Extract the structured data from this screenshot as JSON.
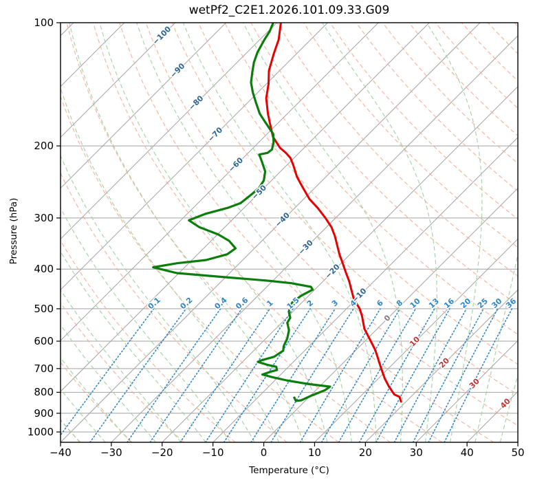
{
  "title": "wetPf2_C2E1.2026.101.09.33.G09",
  "chart_data": {
    "type": "line",
    "chart_kind": "skew-t-log-p-sounding",
    "xlabel": "Temperature (°C)",
    "ylabel": "Pressure (hPa)",
    "x_range": [
      -40,
      50
    ],
    "x_ticks": [
      -40,
      -30,
      -20,
      -10,
      0,
      10,
      20,
      30,
      40,
      50
    ],
    "p_range": [
      100,
      1060
    ],
    "y_ticks": [
      100,
      200,
      300,
      400,
      500,
      600,
      700,
      800,
      900,
      1000
    ],
    "skew_deg": 45,
    "grid": true,
    "series": [
      {
        "name": "temperature",
        "color": "#e60000",
        "width": 3,
        "points": [
          [
            100,
            -79.2
          ],
          [
            110,
            -76.3
          ],
          [
            119,
            -74.5
          ],
          [
            131,
            -72.1
          ],
          [
            141,
            -69.6
          ],
          [
            153,
            -67.2
          ],
          [
            167,
            -63.8
          ],
          [
            178,
            -61.1
          ],
          [
            190,
            -58.3
          ],
          [
            202,
            -54.8
          ],
          [
            208,
            -52.6
          ],
          [
            214,
            -50.7
          ],
          [
            223,
            -48.7
          ],
          [
            238,
            -45.7
          ],
          [
            253,
            -42.4
          ],
          [
            270,
            -38.8
          ],
          [
            284,
            -35.4
          ],
          [
            300,
            -32.0
          ],
          [
            316,
            -29.0
          ],
          [
            332,
            -26.6
          ],
          [
            350,
            -24.3
          ],
          [
            368,
            -22.1
          ],
          [
            387,
            -19.7
          ],
          [
            409,
            -17.1
          ],
          [
            429,
            -14.8
          ],
          [
            446,
            -13.1
          ],
          [
            474,
            -10.4
          ],
          [
            500,
            -7.4
          ],
          [
            521,
            -5.5
          ],
          [
            560,
            -2.5
          ],
          [
            597,
            0.9
          ],
          [
            632,
            3.9
          ],
          [
            673,
            6.8
          ],
          [
            700,
            8.6
          ],
          [
            741,
            11.3
          ],
          [
            775,
            13.7
          ],
          [
            810,
            16.3
          ],
          [
            821,
            17.8
          ],
          [
            843,
            19.0
          ]
        ]
      },
      {
        "name": "dewpoint",
        "color": "#0b7d0b",
        "width": 3.2,
        "points": [
          [
            100,
            -80.7
          ],
          [
            105,
            -79.7
          ],
          [
            110,
            -79.1
          ],
          [
            118,
            -78.0
          ],
          [
            125,
            -76.7
          ],
          [
            132,
            -75.1
          ],
          [
            140,
            -73.3
          ],
          [
            148,
            -71.0
          ],
          [
            157,
            -68.3
          ],
          [
            167,
            -65.4
          ],
          [
            175,
            -62.7
          ],
          [
            182,
            -60.4
          ],
          [
            187,
            -58.8
          ],
          [
            196,
            -57.1
          ],
          [
            204,
            -56.0
          ],
          [
            208,
            -56.2
          ],
          [
            210,
            -57.5
          ],
          [
            218,
            -55.7
          ],
          [
            231,
            -53.0
          ],
          [
            243,
            -51.5
          ],
          [
            253,
            -51.0
          ],
          [
            263,
            -51.2
          ],
          [
            276,
            -51.6
          ],
          [
            283,
            -53.1
          ],
          [
            293,
            -56.4
          ],
          [
            304,
            -58.4
          ],
          [
            316,
            -55.0
          ],
          [
            329,
            -49.9
          ],
          [
            341,
            -46.5
          ],
          [
            356,
            -43.7
          ],
          [
            368,
            -44.2
          ],
          [
            380,
            -47.2
          ],
          [
            387,
            -52.3
          ],
          [
            396,
            -56.2
          ],
          [
            409,
            -50.4
          ],
          [
            418,
            -40.7
          ],
          [
            427,
            -30.9
          ],
          [
            433,
            -25.9
          ],
          [
            442,
            -21.3
          ],
          [
            449,
            -20.4
          ],
          [
            465,
            -21.5
          ],
          [
            483,
            -21.9
          ],
          [
            508,
            -20.8
          ],
          [
            526,
            -19.3
          ],
          [
            541,
            -18.9
          ],
          [
            564,
            -17.1
          ],
          [
            591,
            -15.8
          ],
          [
            617,
            -15.0
          ],
          [
            633,
            -14.2
          ],
          [
            655,
            -14.8
          ],
          [
            667,
            -16.5
          ],
          [
            674,
            -17.0
          ],
          [
            686,
            -14.4
          ],
          [
            693,
            -12.4
          ],
          [
            706,
            -11.6
          ],
          [
            711,
            -12.4
          ],
          [
            724,
            -13.6
          ],
          [
            734,
            -11.3
          ],
          [
            748,
            -7.7
          ],
          [
            763,
            -2.9
          ],
          [
            775,
            2.1
          ],
          [
            790,
            1.8
          ],
          [
            815,
            0.2
          ],
          [
            837,
            -0.9
          ],
          [
            840,
            -1.8
          ],
          [
            824,
            -2.8
          ]
        ]
      }
    ],
    "isotherms": {
      "start": -120,
      "end": 50,
      "step": 10,
      "color": "#a2a2a2"
    },
    "isotherm_labels": [
      {
        "value": -100,
        "y": 52
      },
      {
        "value": -90,
        "y": 103
      },
      {
        "value": -80,
        "y": 150
      },
      {
        "value": -70,
        "y": 196
      },
      {
        "value": -60,
        "y": 240
      },
      {
        "value": -50,
        "y": 280
      },
      {
        "value": -40,
        "y": 320
      },
      {
        "value": -30,
        "y": 360
      },
      {
        "value": -20,
        "y": 395
      },
      {
        "value": -10,
        "y": 430
      },
      {
        "value": 0,
        "y": 463
      },
      {
        "value": 10,
        "y": 497
      },
      {
        "value": 20,
        "y": 528
      },
      {
        "value": 30,
        "y": 558
      },
      {
        "value": 40,
        "y": 587
      }
    ],
    "isotherm_label_colors": {
      "negative": "#2d6595",
      "zero": "#7f7f7f",
      "positive": "#c03434"
    },
    "dry_adiabats": {
      "start": -40,
      "end": 200,
      "step": 10,
      "color": "#f7a98f"
    },
    "moist_adiabats": {
      "start": -40,
      "end": 45,
      "step": 5,
      "color": "#9fd09f"
    },
    "mixing_ratio_lines": {
      "values": [
        0.1,
        0.2,
        0.4,
        0.6,
        1,
        1.5,
        2,
        3,
        4,
        6,
        8,
        10,
        13,
        16,
        20,
        25,
        30,
        36
      ],
      "color": "#3188c9",
      "label_color": "#2f86c9",
      "top_pressure": 500
    }
  }
}
